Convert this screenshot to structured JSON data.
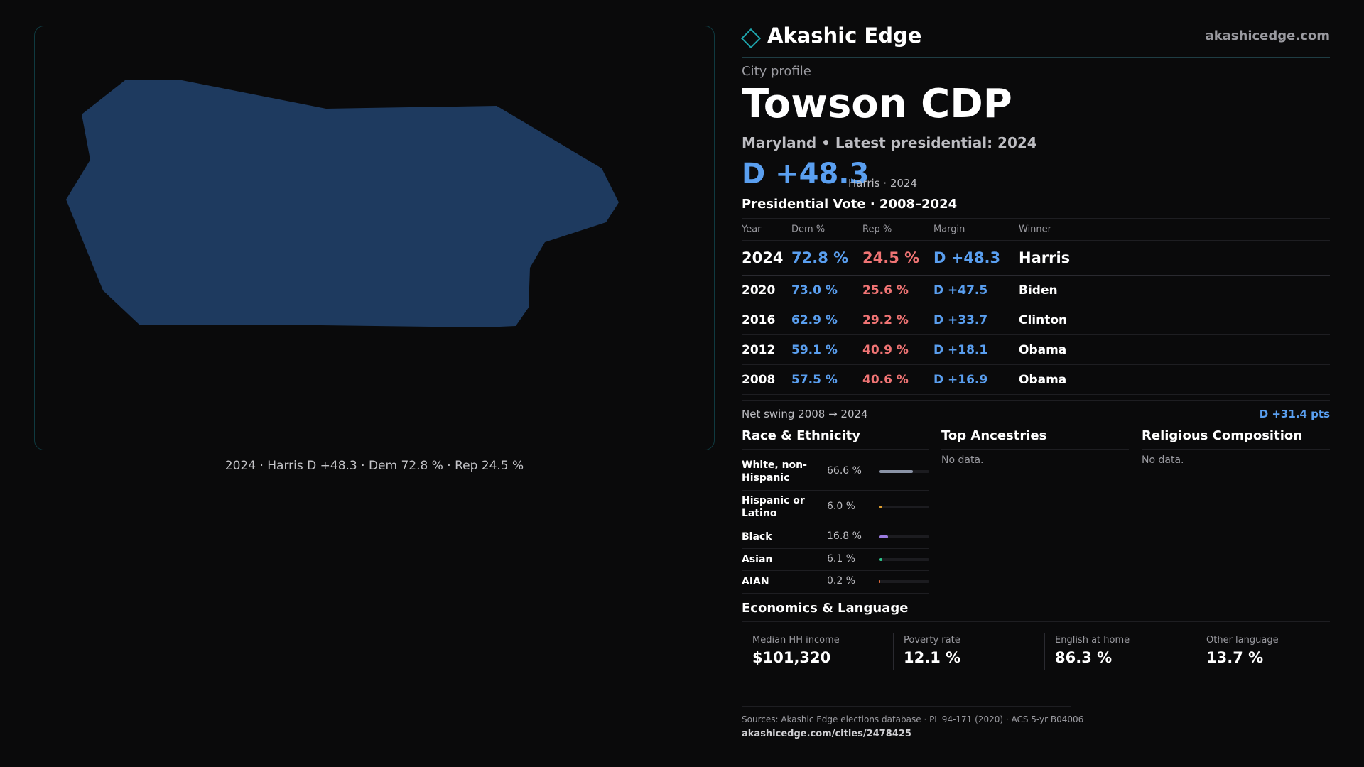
{
  "map": {
    "caption": "2024 · Harris D +48.3 · Dem 72.8 % · Rep 24.5 %",
    "fill_color": "#1e3a5f",
    "border_color": "#0f3a40"
  },
  "brand": {
    "name": "Akashic Edge",
    "site": "akashicedge.com",
    "logo_icon": "diamond-outline-icon",
    "accent": "#1ea4ac"
  },
  "profile": {
    "eyebrow": "City profile",
    "city": "Towson CDP",
    "subtitle": "Maryland • Latest presidential: 2024",
    "margin": "D +48.3",
    "margin_note": "Harris · 2024"
  },
  "colors": {
    "dem": "#5a9ff0",
    "rep": "#f07474"
  },
  "vote": {
    "title": "Presidential Vote · 2008–2024",
    "headers": {
      "year": "Year",
      "dem": "Dem %",
      "rep": "Rep %",
      "margin": "Margin",
      "winner": "Winner"
    },
    "rows": [
      {
        "year": "2024",
        "dem": "72.8 %",
        "rep": "24.5 %",
        "margin": "D +48.3",
        "winner": "Harris"
      },
      {
        "year": "2020",
        "dem": "73.0 %",
        "rep": "25.6 %",
        "margin": "D +47.5",
        "winner": "Biden"
      },
      {
        "year": "2016",
        "dem": "62.9 %",
        "rep": "29.2 %",
        "margin": "D +33.7",
        "winner": "Clinton"
      },
      {
        "year": "2012",
        "dem": "59.1 %",
        "rep": "40.9 %",
        "margin": "D +18.1",
        "winner": "Obama"
      },
      {
        "year": "2008",
        "dem": "57.5 %",
        "rep": "40.6 %",
        "margin": "D +16.9",
        "winner": "Obama"
      }
    ],
    "swing_label": "Net swing 2008 → 2024",
    "swing_value": "D +31.4 pts"
  },
  "race": {
    "title": "Race & Ethnicity",
    "rows": [
      {
        "label": "White, non-Hispanic",
        "value": "66.6 %",
        "share": 66.6,
        "color": "#8a93a6"
      },
      {
        "label": "Hispanic or Latino",
        "value": "6.0 %",
        "share": 6.0,
        "color": "#e0a030"
      },
      {
        "label": "Black",
        "value": "16.8 %",
        "share": 16.8,
        "color": "#9b7be0"
      },
      {
        "label": "Asian",
        "value": "6.1 %",
        "share": 6.1,
        "color": "#2ec48a"
      },
      {
        "label": "AIAN",
        "value": "0.2 %",
        "share": 0.2,
        "color": "#e06a3a"
      }
    ]
  },
  "ancestries": {
    "title": "Top Ancestries",
    "empty": "No data."
  },
  "religion": {
    "title": "Religious Composition",
    "empty": "No data."
  },
  "economics": {
    "title": "Economics & Language",
    "cards": [
      {
        "label": "Median HH income",
        "value": "$101,320"
      },
      {
        "label": "Poverty rate",
        "value": "12.1 %"
      },
      {
        "label": "English at home",
        "value": "86.3 %"
      },
      {
        "label": "Other language",
        "value": "13.7 %"
      }
    ]
  },
  "footer": {
    "sources": "Sources: Akashic Edge elections database · PL 94-171 (2020) · ACS 5-yr B04006",
    "url": "akashicedge.com/cities/2478425"
  }
}
